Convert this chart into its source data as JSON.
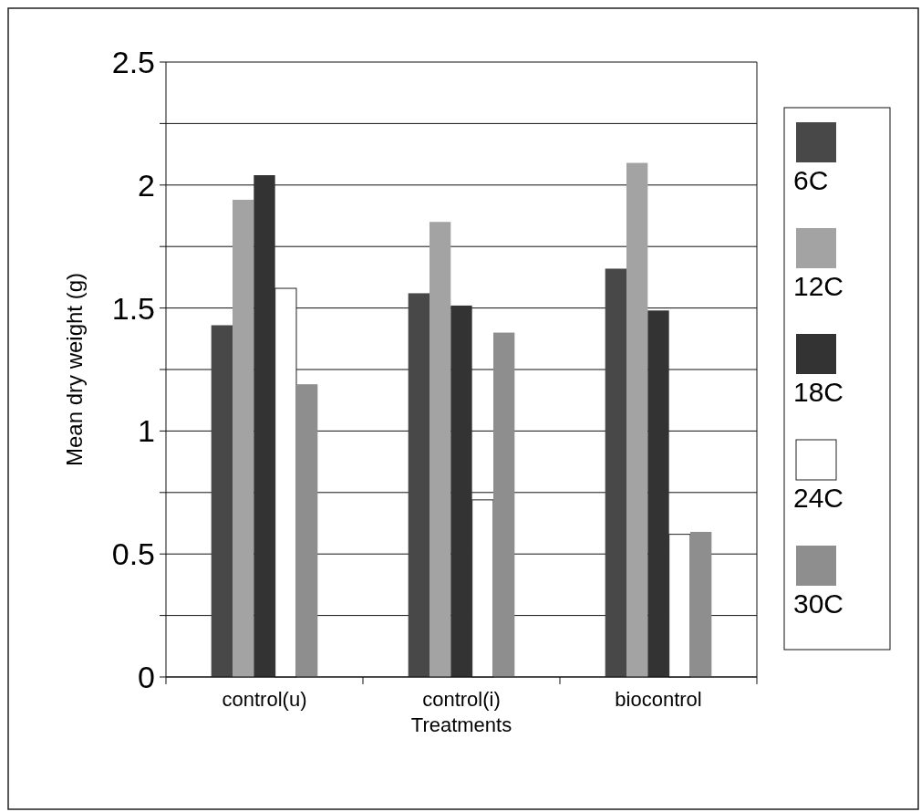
{
  "chart_data": {
    "type": "bar",
    "xlabel": "Treatments",
    "ylabel": "Mean dry weight (g)",
    "categories": [
      "control(u)",
      "control(i)",
      "biocontrol"
    ],
    "series": [
      {
        "name": "6C",
        "color": "#484848",
        "values": [
          1.43,
          1.56,
          1.66
        ]
      },
      {
        "name": "12C",
        "color": "#a3a3a3",
        "values": [
          1.94,
          1.85,
          2.09
        ]
      },
      {
        "name": "18C",
        "color": "#333333",
        "values": [
          2.04,
          1.51,
          1.49
        ]
      },
      {
        "name": "24C",
        "color": "#ffffff",
        "values": [
          1.58,
          0.72,
          0.58
        ]
      },
      {
        "name": "30C",
        "color": "#8e8e8e",
        "values": [
          1.19,
          1.4,
          0.59
        ]
      }
    ],
    "ylim": [
      0,
      2.5
    ],
    "yticks": [
      0,
      {
        "value": 0.25,
        "label": null
      },
      0.5,
      {
        "value": 0.75,
        "label": null
      },
      1,
      {
        "value": 1.25,
        "label": null
      },
      1.5,
      {
        "value": 1.75,
        "label": null
      },
      2,
      {
        "value": 2.25,
        "label": null
      },
      2.5
    ],
    "grid": "y",
    "legend": "right"
  }
}
